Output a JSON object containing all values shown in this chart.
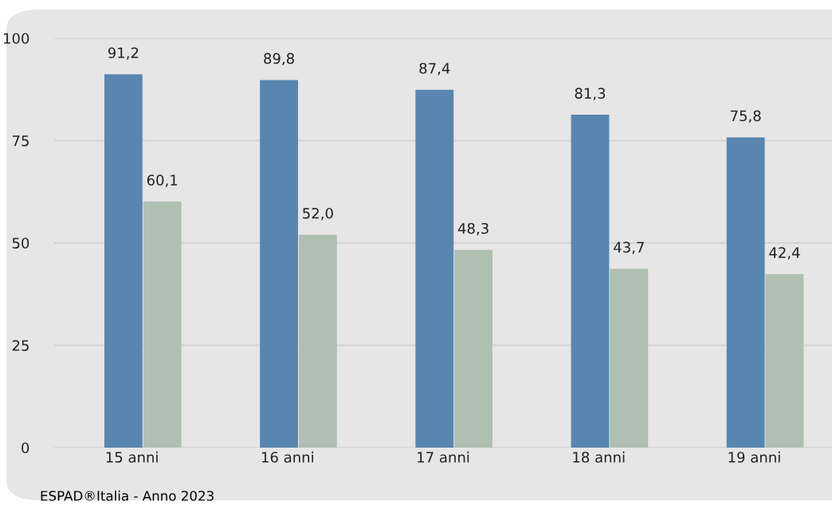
{
  "chart_data": {
    "type": "bar",
    "categories": [
      "15 anni",
      "16 anni",
      "17 anni",
      "18 anni",
      "19 anni"
    ],
    "series": [
      {
        "color": "#5886b0",
        "values": [
          91.2,
          89.8,
          87.4,
          81.3,
          75.8
        ],
        "value_labels": [
          "91,2",
          "89,8",
          "87,4",
          "81,3",
          "75,8"
        ]
      },
      {
        "color": "#afc0b2",
        "values": [
          60.1,
          52.0,
          48.3,
          43.7,
          42.4
        ],
        "value_labels": [
          "60,1",
          "52,0",
          "48,3",
          "43,7",
          "42,4"
        ]
      }
    ],
    "ylim": [
      0,
      100
    ],
    "yticks": [
      0,
      25,
      50,
      75,
      100
    ],
    "grid": "y",
    "legend": false,
    "annotations": [
      "ESPAD®Italia - Anno 2023"
    ]
  }
}
